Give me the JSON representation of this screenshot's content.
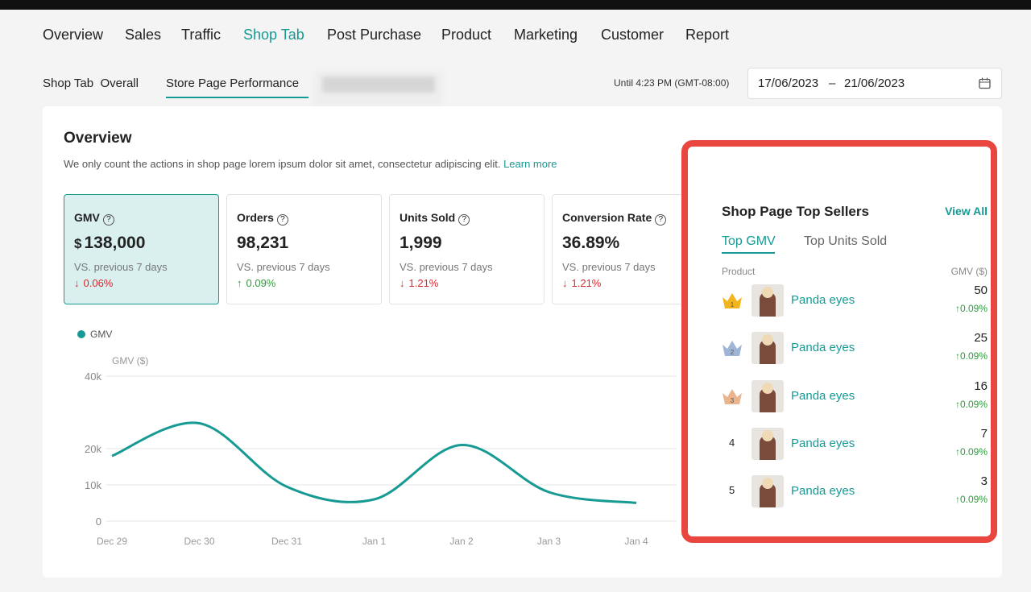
{
  "nav": {
    "items": [
      "Overview",
      "Sales",
      "Traffic",
      "Shop Tab",
      "Post Purchase",
      "Product",
      "Marketing",
      "Customer",
      "Report"
    ],
    "active": 3
  },
  "subnav": {
    "items": [
      "Shop Tab  Overall",
      "Store Page Performance"
    ],
    "active": 1
  },
  "date": {
    "until": "Until 4:23 PM (GMT-08:00)",
    "start": "17/06/2023",
    "separator": "–",
    "end": "21/06/2023"
  },
  "overview": {
    "title": "Overview",
    "description": "We only count the actions in shop page lorem ipsum dolor sit amet, consectetur adipiscing elit.",
    "learn_more": "Learn more"
  },
  "metrics": [
    {
      "label": "GMV",
      "currency": "$",
      "value": "138,000",
      "compare": "VS. previous 7 days",
      "change": "0.06%",
      "direction": "down",
      "selected": true
    },
    {
      "label": "Orders",
      "value": "98,231",
      "compare": "VS. previous 7 days",
      "change": "0.09%",
      "direction": "up"
    },
    {
      "label": "Units Sold",
      "value": "1,999",
      "compare": "VS. previous 7 days",
      "change": "1.21%",
      "direction": "down"
    },
    {
      "label": "Conversion Rate",
      "value": "36.89%",
      "compare": "VS. previous 7 days",
      "change": "1.21%",
      "direction": "down"
    }
  ],
  "chart_data": {
    "type": "line",
    "y_label": "GMV ($)",
    "categories": [
      "Dec 29",
      "Dec 30",
      "Dec 31",
      "Jan 1",
      "Jan 2",
      "Jan 3",
      "Jan 4"
    ],
    "series": [
      {
        "name": "GMV",
        "color": "#179a93",
        "values": [
          18000,
          27000,
          9500,
          6000,
          21000,
          8000,
          5000
        ]
      }
    ],
    "ylim": [
      0,
      40000
    ],
    "yticks": [
      0,
      {
        "value": 10000,
        "label": "10k"
      },
      {
        "value": 20000,
        "label": "20k"
      },
      {
        "value": 40000,
        "label": "40k"
      }
    ],
    "grid": true
  },
  "top_sellers": {
    "title": "Shop Page Top Sellers",
    "view_all": "View All",
    "tabs": [
      "Top GMV",
      "Top Units Sold"
    ],
    "active_tab": 0,
    "columns": [
      "Product",
      "GMV ($)"
    ],
    "rows": [
      {
        "rank": 1,
        "name": "Panda eyes",
        "gmv": 50,
        "change": "0.09%"
      },
      {
        "rank": 2,
        "name": "Panda eyes",
        "gmv": 25,
        "change": "0.09%"
      },
      {
        "rank": 3,
        "name": "Panda eyes",
        "gmv": 16,
        "change": "0.09%"
      },
      {
        "rank": 4,
        "name": "Panda eyes",
        "gmv": 7,
        "change": "0.09%"
      },
      {
        "rank": 5,
        "name": "Panda eyes",
        "gmv": 3,
        "change": "0.09%"
      }
    ]
  }
}
